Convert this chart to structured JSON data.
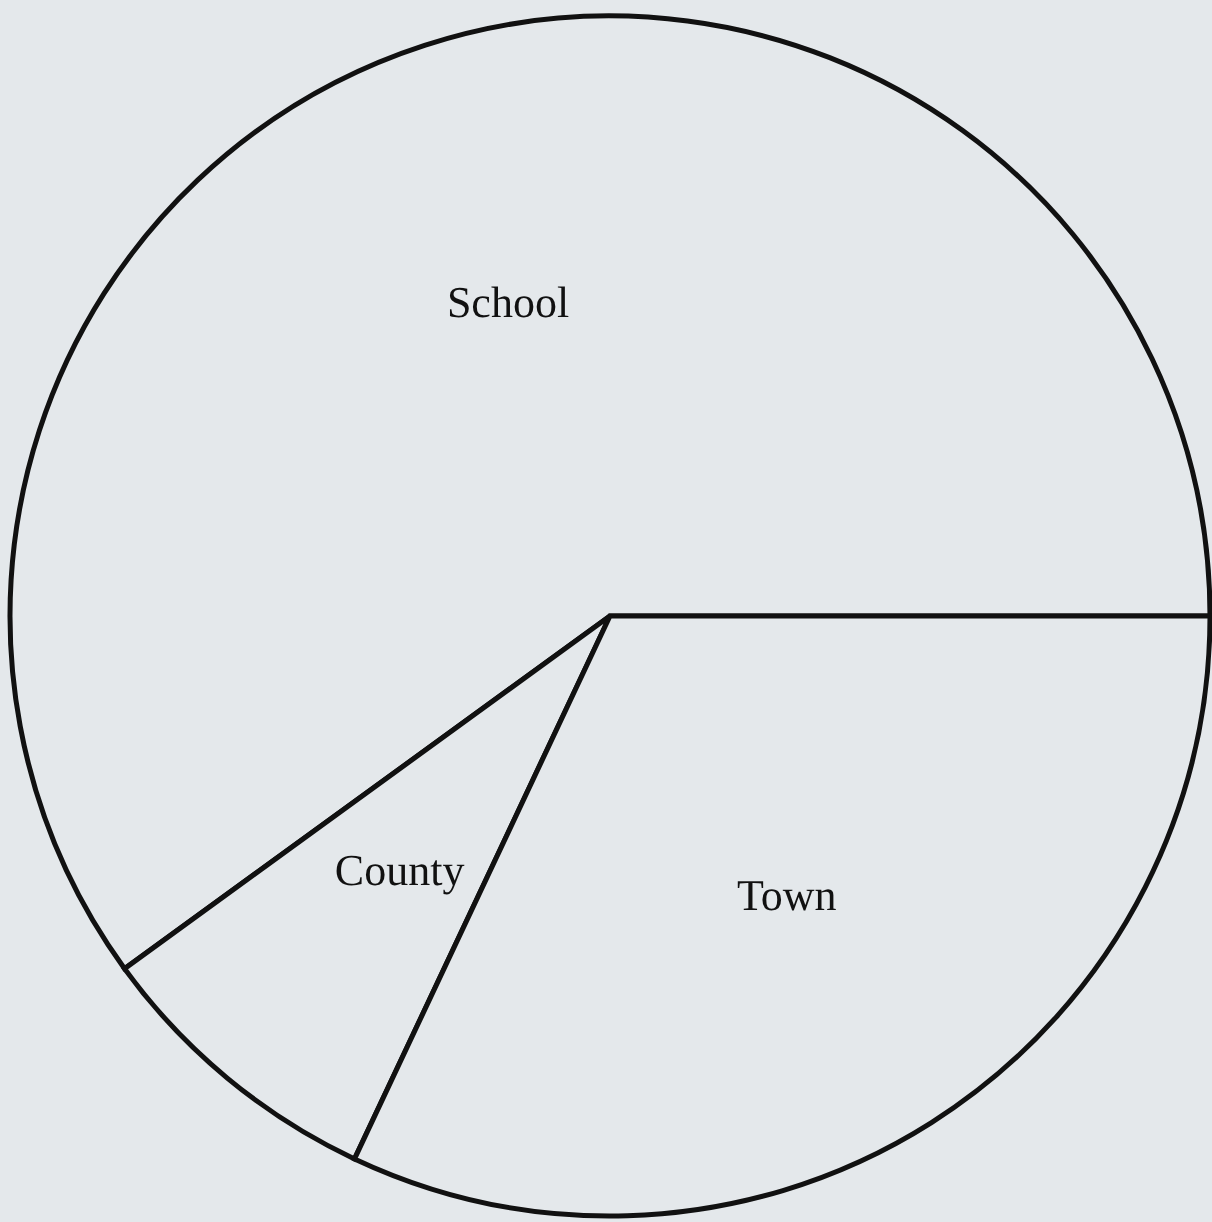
{
  "chart_data": {
    "type": "pie",
    "categories": [
      "School",
      "County",
      "Town"
    ],
    "values": [
      60,
      8,
      32
    ],
    "colors": [
      "#e4e8eb",
      "#e4e8eb",
      "#e4e8eb"
    ]
  }
}
